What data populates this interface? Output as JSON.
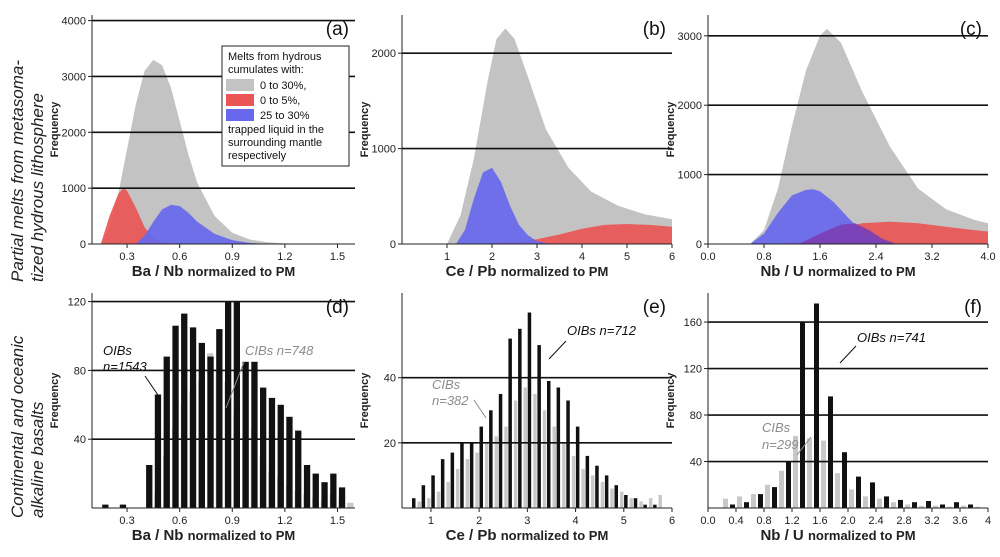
{
  "row_labels": [
    "Partial melts from metasoma-",
    "tized hydrous lithosphere",
    "Continental and oceanic",
    "alkaline basalts"
  ],
  "colors": {
    "gray": "#c3c3c3",
    "red": "#ea5656",
    "blue": "#6868ee",
    "purple": "#7a3fb4",
    "bar_black": "#111111",
    "bar_gray": "#c8c8c8",
    "ann_gray": "#8c8c8c"
  },
  "legend": {
    "title_lines": [
      "Melts from hydrous",
      "cumulates with:"
    ],
    "items": [
      {
        "label": "0 to 30%,",
        "color": "#c3c3c3"
      },
      {
        "label": "0 to 5%,",
        "color": "#ea5656"
      },
      {
        "label": "25 to 30%",
        "color": "#6868ee"
      }
    ],
    "tail_lines": [
      "trapped liquid in the",
      "surrounding mantle",
      "respectively"
    ]
  },
  "chart_data": [
    {
      "id": "a",
      "panel_label": "(a)",
      "type": "area",
      "xlabel_main": "Ba / Nb",
      "xlabel_suffix": "normalized to PM",
      "ylabel": "Frequency",
      "xlim": [
        0.1,
        1.6
      ],
      "ylim": [
        0,
        4100
      ],
      "xticks": [
        "0.3",
        "0.6",
        "0.9",
        "1.2",
        "1.5"
      ],
      "xtick_values": [
        0.3,
        0.6,
        0.9,
        1.2,
        1.5
      ],
      "yticks": [
        "0",
        "1000",
        "2000",
        "3000",
        "4000"
      ],
      "ytick_values": [
        0,
        1000,
        2000,
        3000,
        4000
      ],
      "series": [
        {
          "color": "gray",
          "x": [
            0.15,
            0.2,
            0.25,
            0.3,
            0.35,
            0.4,
            0.45,
            0.5,
            0.55,
            0.6,
            0.65,
            0.7,
            0.8,
            0.9,
            1.0,
            1.1,
            1.2,
            1.3
          ],
          "y": [
            0,
            300,
            900,
            1700,
            2500,
            3100,
            3300,
            3200,
            2800,
            2200,
            1600,
            1100,
            500,
            200,
            80,
            30,
            10,
            0
          ]
        },
        {
          "color": "red",
          "x": [
            0.15,
            0.2,
            0.25,
            0.28,
            0.3,
            0.35,
            0.4,
            0.45,
            0.5,
            0.55
          ],
          "y": [
            0,
            500,
            900,
            1000,
            950,
            650,
            300,
            100,
            30,
            0
          ]
        },
        {
          "color": "blue",
          "x": [
            0.35,
            0.4,
            0.45,
            0.5,
            0.55,
            0.6,
            0.65,
            0.7,
            0.8,
            0.9,
            1.0,
            1.1
          ],
          "y": [
            0,
            150,
            400,
            620,
            700,
            680,
            560,
            400,
            180,
            70,
            20,
            0
          ]
        }
      ]
    },
    {
      "id": "b",
      "panel_label": "(b)",
      "type": "area",
      "xlabel_main": "Ce / Pb",
      "xlabel_suffix": "normalized to PM",
      "ylabel": "Frequency",
      "xlim": [
        0,
        6
      ],
      "ylim": [
        0,
        2400
      ],
      "xticks": [
        "1",
        "2",
        "3",
        "4",
        "5",
        "6"
      ],
      "xtick_values": [
        1,
        2,
        3,
        4,
        5,
        6
      ],
      "yticks": [
        "0",
        "1000",
        "2000"
      ],
      "ytick_values": [
        0,
        1000,
        2000
      ],
      "series": [
        {
          "color": "gray",
          "x": [
            1.0,
            1.3,
            1.6,
            1.9,
            2.1,
            2.3,
            2.5,
            2.8,
            3.2,
            3.7,
            4.2,
            4.8,
            5.4,
            6.0
          ],
          "y": [
            0,
            300,
            900,
            1700,
            2150,
            2260,
            2150,
            1750,
            1200,
            800,
            550,
            400,
            310,
            260
          ]
        },
        {
          "color": "red",
          "x": [
            1.8,
            2.5,
            3.0,
            3.5,
            4.0,
            4.5,
            5.0,
            5.5,
            6.0
          ],
          "y": [
            0,
            20,
            50,
            100,
            160,
            200,
            210,
            200,
            180
          ]
        },
        {
          "color": "blue",
          "x": [
            1.2,
            1.4,
            1.6,
            1.8,
            2.0,
            2.2,
            2.4,
            2.6,
            2.8,
            3.0,
            3.3
          ],
          "y": [
            0,
            150,
            480,
            750,
            800,
            650,
            400,
            200,
            90,
            30,
            0
          ]
        }
      ]
    },
    {
      "id": "c",
      "panel_label": "(c)",
      "type": "area",
      "xlabel_main": "Nb / U",
      "xlabel_suffix": "normalized to PM",
      "ylabel": "Frequency",
      "xlim": [
        0,
        4
      ],
      "ylim": [
        0,
        3300
      ],
      "xticks": [
        "0.0",
        "0.8",
        "1.6",
        "2.4",
        "3.2",
        "4.0"
      ],
      "xtick_values": [
        0,
        0.8,
        1.6,
        2.4,
        3.2,
        4.0
      ],
      "yticks": [
        "0",
        "1000",
        "2000",
        "3000"
      ],
      "ytick_values": [
        0,
        1000,
        2000,
        3000
      ],
      "series": [
        {
          "color": "gray",
          "x": [
            0.6,
            0.8,
            1.0,
            1.2,
            1.4,
            1.6,
            1.7,
            1.9,
            2.2,
            2.6,
            3.0,
            3.4,
            3.8,
            4.0
          ],
          "y": [
            0,
            200,
            800,
            1700,
            2500,
            3000,
            3100,
            2900,
            2200,
            1400,
            800,
            500,
            350,
            300
          ]
        },
        {
          "color": "red",
          "x": [
            1.0,
            1.4,
            1.8,
            2.2,
            2.6,
            3.0,
            3.4,
            3.8,
            4.0
          ],
          "y": [
            0,
            50,
            200,
            300,
            320,
            300,
            250,
            200,
            180
          ]
        },
        {
          "color": "blue",
          "x": [
            0.6,
            0.8,
            1.0,
            1.2,
            1.4,
            1.5,
            1.6,
            1.8,
            2.0,
            2.2,
            2.4,
            2.6
          ],
          "y": [
            0,
            150,
            450,
            700,
            780,
            790,
            760,
            600,
            380,
            180,
            60,
            0
          ]
        },
        {
          "color": "purple",
          "x": [
            1.3,
            1.6,
            1.9,
            2.1,
            2.3,
            2.5,
            2.7
          ],
          "y": [
            0,
            150,
            280,
            300,
            200,
            70,
            0
          ]
        }
      ]
    },
    {
      "id": "d",
      "panel_label": "(d)",
      "type": "bar",
      "xlabel_main": "Ba / Nb",
      "xlabel_suffix": "normalized to PM",
      "ylabel": "Frequency",
      "xlim": [
        0.1,
        1.6
      ],
      "ylim": [
        0,
        125
      ],
      "xticks": [
        "0.3",
        "0.6",
        "0.9",
        "1.2",
        "1.5"
      ],
      "xtick_values": [
        0.3,
        0.6,
        0.9,
        1.2,
        1.5
      ],
      "yticks": [
        "40",
        "80",
        "120"
      ],
      "ytick_values": [
        40,
        80,
        120
      ],
      "x": [
        0.2,
        0.3,
        0.35,
        0.4,
        0.45,
        0.5,
        0.55,
        0.6,
        0.65,
        0.7,
        0.75,
        0.8,
        0.85,
        0.9,
        0.95,
        1.0,
        1.05,
        1.1,
        1.15,
        1.2,
        1.25,
        1.3,
        1.35,
        1.4,
        1.45,
        1.5,
        1.55
      ],
      "series": [
        {
          "name": "OIBs n=1543",
          "color": "bar_black",
          "values": [
            2,
            2,
            0,
            0,
            25,
            66,
            88,
            106,
            113,
            105,
            96,
            88,
            104,
            120,
            120,
            85,
            85,
            70,
            64,
            60,
            53,
            45,
            25,
            20,
            15,
            20,
            12
          ]
        },
        {
          "name": "CIBs n=748",
          "color": "bar_gray",
          "values": [
            0,
            0,
            0,
            0,
            8,
            30,
            46,
            60,
            68,
            74,
            90,
            80,
            73,
            54,
            40,
            46,
            30,
            21,
            18,
            13,
            10,
            8,
            6,
            5,
            8,
            6,
            3
          ]
        }
      ]
    },
    {
      "id": "e",
      "panel_label": "(e)",
      "type": "bar",
      "xlabel_main": "Ce / Pb",
      "xlabel_suffix": "normalized to PM",
      "ylabel": "Frequency",
      "xlim": [
        0.4,
        6
      ],
      "ylim": [
        0,
        66
      ],
      "xticks": [
        "1",
        "2",
        "3",
        "4",
        "5",
        "6"
      ],
      "xtick_values": [
        1,
        2,
        3,
        4,
        5,
        6
      ],
      "yticks": [
        "20",
        "40"
      ],
      "ytick_values": [
        20,
        40
      ],
      "x": [
        0.7,
        0.9,
        1.1,
        1.3,
        1.5,
        1.7,
        1.9,
        2.1,
        2.3,
        2.5,
        2.7,
        2.9,
        3.1,
        3.3,
        3.5,
        3.7,
        3.9,
        4.1,
        4.3,
        4.5,
        4.7,
        4.9,
        5.1,
        5.3,
        5.5,
        5.7
      ],
      "series": [
        {
          "name": "OIBs n=712",
          "color": "bar_black",
          "values": [
            3,
            7,
            10,
            15,
            17,
            20,
            20,
            25,
            30,
            35,
            52,
            55,
            60,
            50,
            39,
            37,
            33,
            25,
            16,
            13,
            10,
            7,
            4,
            3,
            1,
            1
          ]
        },
        {
          "name": "CIBs n=382",
          "color": "bar_gray",
          "values": [
            2,
            3,
            5,
            8,
            12,
            15,
            17,
            20,
            22,
            25,
            33,
            37,
            35,
            30,
            25,
            20,
            16,
            12,
            10,
            8,
            6,
            5,
            3,
            2,
            3,
            4
          ]
        }
      ]
    },
    {
      "id": "f",
      "panel_label": "(f)",
      "type": "bar",
      "xlabel_main": "Nb / U",
      "xlabel_suffix": "normalized to PM",
      "ylabel": "Frequency",
      "xlim": [
        0,
        4
      ],
      "ylim": [
        0,
        185
      ],
      "xticks": [
        "0.0",
        "0.4",
        "0.8",
        "1.2",
        "1.6",
        "2.0",
        "2.4",
        "2.8",
        "3.2",
        "3.6",
        "4"
      ],
      "xtick_values": [
        0,
        0.4,
        0.8,
        1.2,
        1.6,
        2.0,
        2.4,
        2.8,
        3.2,
        3.6,
        4.0
      ],
      "ytick_labels_visible": [
        "40",
        "80",
        "120",
        "160"
      ],
      "yticks": [
        "40",
        "80",
        "120",
        "160"
      ],
      "ytick_values": [
        40,
        80,
        120,
        160
      ],
      "x": [
        0.2,
        0.4,
        0.6,
        0.8,
        1.0,
        1.2,
        1.4,
        1.6,
        1.8,
        2.0,
        2.2,
        2.4,
        2.6,
        2.8,
        3.0,
        3.2,
        3.4,
        3.6,
        3.8
      ],
      "series": [
        {
          "name": "OIBs n=741",
          "color": "bar_black",
          "values": [
            0,
            3,
            5,
            12,
            18,
            40,
            160,
            176,
            96,
            48,
            27,
            22,
            10,
            7,
            5,
            6,
            3,
            5,
            3
          ]
        },
        {
          "name": "CIBs n=299",
          "color": "bar_gray",
          "values": [
            8,
            10,
            12,
            20,
            32,
            62,
            60,
            58,
            30,
            16,
            10,
            8,
            5,
            3,
            2,
            2,
            1,
            2,
            1
          ]
        }
      ]
    }
  ],
  "annotations": {
    "d_oib": [
      "OIBs",
      "n=1543"
    ],
    "d_cib": "CIBs n=748",
    "e_oib": "OIBs n=712",
    "e_cib": [
      "CIBs",
      "n=382"
    ],
    "f_oib": "OIBs n=741",
    "f_cib": [
      "CIBs",
      "n=299"
    ]
  }
}
